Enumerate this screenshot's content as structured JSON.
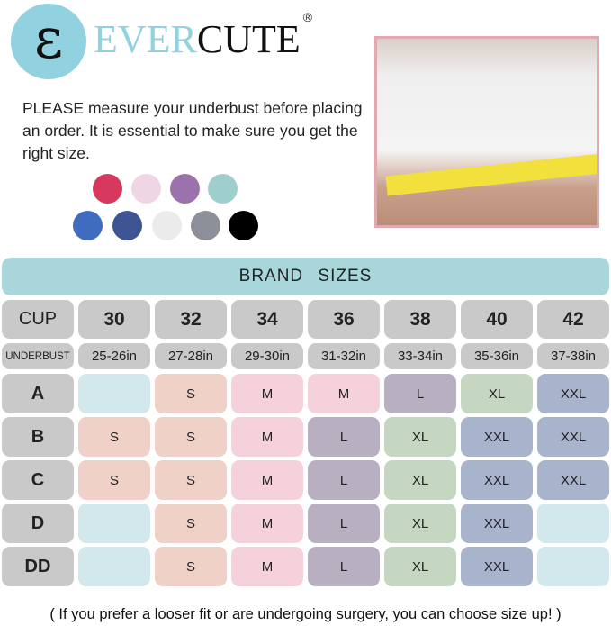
{
  "logo": {
    "letter": "ε",
    "brand_light": "EVER",
    "brand_dark": "CUTE",
    "registered": "®"
  },
  "intro": "PLEASE measure your underbust before placing an order. It is essential to make sure you get the right size.",
  "swatches": [
    "#d6395d",
    "#f0d6e4",
    "#9b72ac",
    "#9fcfcd",
    "#3f6cbf",
    "#3f5493",
    "#ebebeb",
    "#8d9098",
    "#000000"
  ],
  "banner": "BRAND SIZES",
  "table": {
    "cup_label": "CUP",
    "underbust_label": "UNDERBUST",
    "bands": [
      "30",
      "32",
      "34",
      "36",
      "38",
      "40",
      "42"
    ],
    "underbust": [
      "25-26in",
      "27-28in",
      "29-30in",
      "31-32in",
      "33-34in",
      "35-36in",
      "37-38in"
    ],
    "rows": [
      {
        "cup": "A",
        "sizes": [
          "",
          "S",
          "M",
          "M",
          "L",
          "XL",
          "XXL"
        ]
      },
      {
        "cup": "B",
        "sizes": [
          "S",
          "S",
          "M",
          "L",
          "XL",
          "XXL",
          "XXL"
        ]
      },
      {
        "cup": "C",
        "sizes": [
          "S",
          "S",
          "M",
          "L",
          "XL",
          "XXL",
          "XXL"
        ]
      },
      {
        "cup": "D",
        "sizes": [
          "",
          "S",
          "M",
          "L",
          "XL",
          "XXL",
          ""
        ]
      },
      {
        "cup": "DD",
        "sizes": [
          "",
          "S",
          "M",
          "L",
          "XL",
          "XXL",
          ""
        ]
      }
    ]
  },
  "size_colors": {
    "": "#d3e8ec",
    "S": "#efd1c7",
    "M": "#f5d1db",
    "L": "#b8b0c0",
    "XL": "#c5d6c1",
    "XXL": "#a8b3cc",
    "header": "#c9c9c9"
  },
  "footer": "( If you prefer a looser fit or are undergoing surgery, you can choose  size up! )"
}
